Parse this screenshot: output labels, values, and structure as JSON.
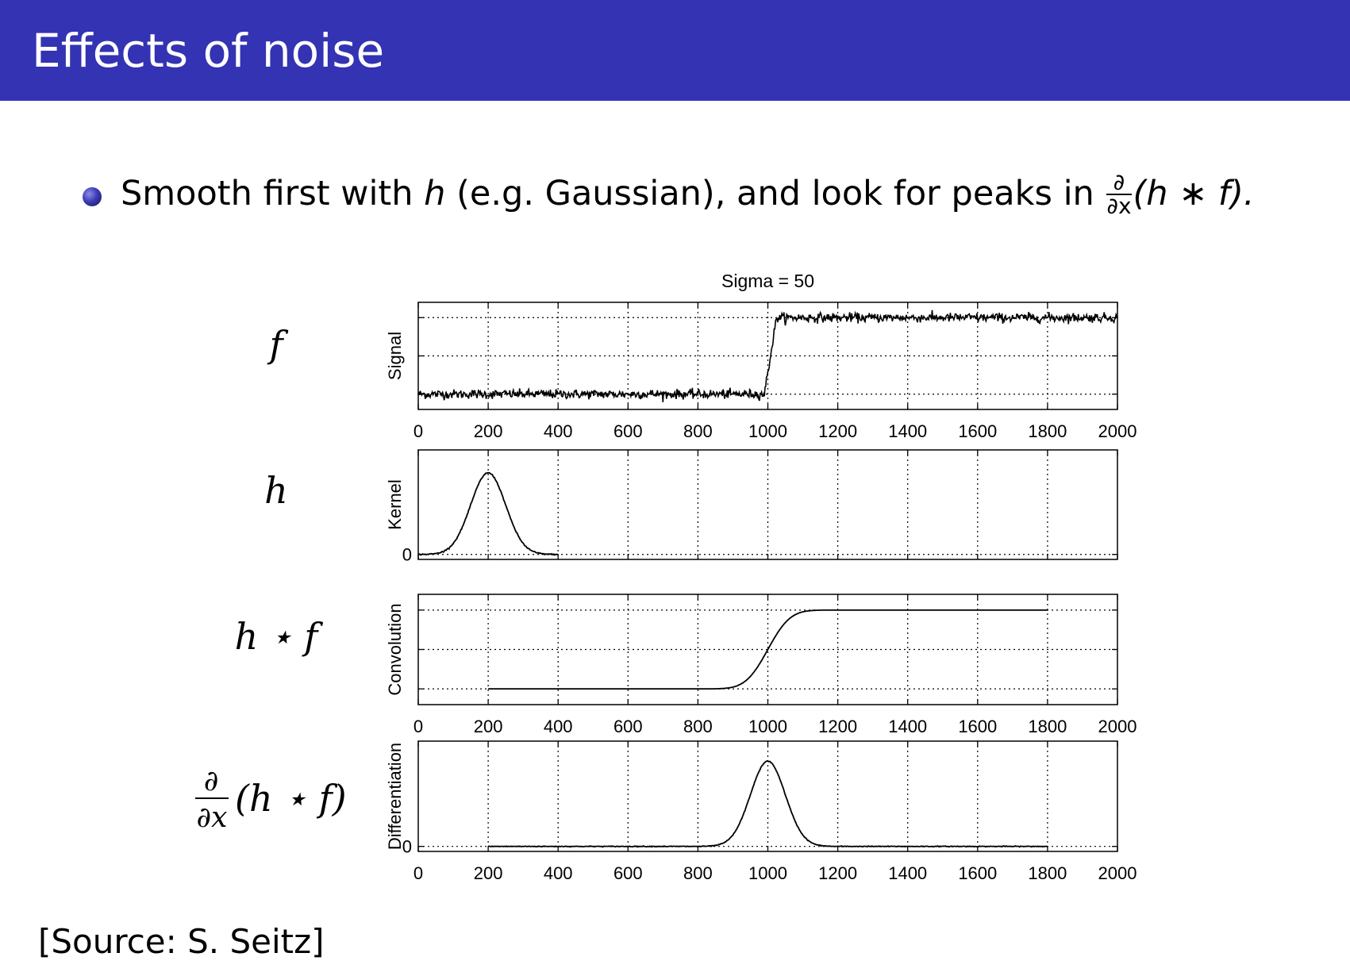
{
  "slide": {
    "title": "Effects of noise",
    "bullet": {
      "prefix": "Smooth first with ",
      "h": "h",
      "middle": " (e.g. Gaussian), and look for peaks in ",
      "frac_num": "∂",
      "frac_den": "∂x",
      "expr": "(h ∗ f).",
      "icon": "bullet-ball-icon"
    },
    "source": "[Source: S. Seitz]"
  },
  "colors": {
    "accent": "#3333b3",
    "line": "#000000",
    "grid": "#000000"
  },
  "chart_data": {
    "type": "line",
    "title": "Sigma = 50",
    "grid": true,
    "panels": [
      {
        "id": "signal",
        "row_label": "f",
        "ylabel": "Signal",
        "xlim": [
          0,
          2000
        ],
        "ylim": [
          -0.2,
          1.2
        ],
        "yticks": [
          0,
          0.5,
          1
        ],
        "ytick_labels": [
          "",
          "",
          ""
        ],
        "xtick_labels_shown": true,
        "series": [
          {
            "description": "noisy step",
            "x_range": [
              0,
              2000
            ],
            "step_start": 990,
            "step_end": 1025,
            "low": 0,
            "high": 1,
            "noise": 0.03
          }
        ]
      },
      {
        "id": "kernel",
        "row_label": "h",
        "ylabel": "Kernel",
        "xlim": [
          0,
          2000
        ],
        "ylim": [
          -0.05,
          1.05
        ],
        "yticks": [
          0
        ],
        "ytick_labels": [
          "0"
        ],
        "xtick_labels_shown": false,
        "series": [
          {
            "description": "gaussian kernel",
            "x_range": [
              0,
              400
            ],
            "center": 200,
            "sigma": 50,
            "peak": 0.82
          }
        ]
      },
      {
        "id": "convolution",
        "row_label": "h ⋆ f",
        "ylabel": "Convolution",
        "xlim": [
          0,
          2000
        ],
        "ylim": [
          -0.2,
          1.2
        ],
        "yticks": [
          0,
          0.5,
          1
        ],
        "ytick_labels": [
          "",
          "",
          ""
        ],
        "xtick_labels_shown": true,
        "series": [
          {
            "description": "smoothed step",
            "x_range": [
              200,
              1800
            ],
            "center": 1000,
            "sigma": 50,
            "low": 0,
            "high": 1
          }
        ]
      },
      {
        "id": "differentiation",
        "row_label": "∂/∂x (h ⋆ f)",
        "ylabel": "Differentiation",
        "xlim": [
          0,
          2000
        ],
        "ylim": [
          -0.05,
          1.05
        ],
        "yticks": [
          0
        ],
        "ytick_labels": [
          "0"
        ],
        "xtick_labels_shown": true,
        "series": [
          {
            "description": "derivative peak",
            "x_range": [
              200,
              1800
            ],
            "center": 1000,
            "sigma": 50,
            "peak": 0.85
          }
        ]
      }
    ],
    "xticks": [
      0,
      200,
      400,
      600,
      800,
      1000,
      1200,
      1400,
      1600,
      1800,
      2000
    ],
    "xtick_labels": [
      "0",
      "200",
      "400",
      "600",
      "800",
      "1000",
      "1200",
      "1400",
      "1600",
      "1800",
      "2000"
    ]
  }
}
